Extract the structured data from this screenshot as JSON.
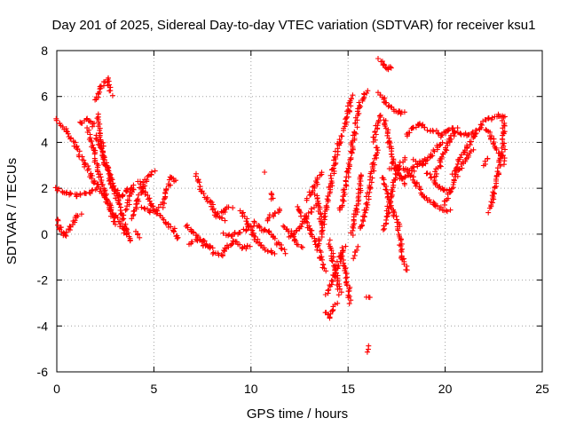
{
  "chart_data": {
    "type": "scatter",
    "title": "Day 201 of 2025, Sidereal Day-to-day VTEC variation (SDTVAR) for receiver ksu1",
    "xlabel": "GPS time / hours",
    "ylabel": "SDTVAR / TECUs",
    "xlim": [
      0,
      25
    ],
    "ylim": [
      -6,
      8
    ],
    "xticks": [
      0,
      5,
      10,
      15,
      20,
      25
    ],
    "yticks": [
      -6,
      -4,
      -2,
      0,
      2,
      4,
      6,
      8
    ],
    "grid": true,
    "marker": "+",
    "color": "#ff0000",
    "tracks": [
      [
        [
          0.0,
          5.0
        ],
        [
          0.5,
          4.5
        ],
        [
          1.0,
          3.8
        ],
        [
          1.5,
          3.0
        ],
        [
          2.0,
          2.2
        ],
        [
          2.5,
          1.6
        ],
        [
          3.0,
          0.8
        ],
        [
          3.5,
          0.1
        ],
        [
          3.8,
          -0.3
        ]
      ],
      [
        [
          0.0,
          2.0
        ],
        [
          0.5,
          1.8
        ],
        [
          1.0,
          1.7
        ],
        [
          1.5,
          1.8
        ],
        [
          2.0,
          1.9
        ]
      ],
      [
        [
          0.0,
          0.6
        ],
        [
          0.2,
          0.2
        ],
        [
          0.4,
          -0.1
        ],
        [
          0.7,
          0.3
        ],
        [
          1.0,
          0.7
        ],
        [
          1.2,
          0.9
        ]
      ],
      [
        [
          1.2,
          4.8
        ],
        [
          1.5,
          5.0
        ],
        [
          1.8,
          4.9
        ],
        [
          1.9,
          4.7
        ]
      ],
      [
        [
          2.0,
          5.8
        ],
        [
          2.3,
          6.4
        ],
        [
          2.6,
          6.8
        ],
        [
          2.8,
          6.1
        ]
      ],
      [
        [
          2.1,
          5.2
        ],
        [
          2.3,
          4.0
        ],
        [
          2.5,
          3.0
        ],
        [
          2.8,
          2.4
        ],
        [
          3.1,
          1.5
        ],
        [
          3.4,
          0.8
        ],
        [
          3.6,
          0.0
        ]
      ],
      [
        [
          1.6,
          4.6
        ],
        [
          1.9,
          3.6
        ],
        [
          2.2,
          2.6
        ],
        [
          2.5,
          1.7
        ],
        [
          2.8,
          1.0
        ],
        [
          3.0,
          0.4
        ]
      ],
      [
        [
          2.0,
          4.3
        ],
        [
          2.4,
          3.4
        ],
        [
          2.8,
          2.2
        ],
        [
          3.3,
          1.6
        ],
        [
          3.6,
          1.9
        ],
        [
          4.0,
          2.0
        ]
      ],
      [
        [
          3.6,
          1.0
        ],
        [
          3.8,
          1.7
        ],
        [
          3.9,
          2.1
        ]
      ],
      [
        [
          3.9,
          0.7
        ],
        [
          4.2,
          1.5
        ],
        [
          4.5,
          2.2
        ],
        [
          4.8,
          2.6
        ],
        [
          5.0,
          2.7
        ]
      ],
      [
        [
          4.2,
          2.3
        ],
        [
          4.5,
          1.8
        ],
        [
          4.9,
          1.3
        ],
        [
          5.2,
          0.9
        ],
        [
          5.6,
          0.5
        ],
        [
          6.0,
          0.2
        ],
        [
          6.3,
          -0.2
        ]
      ],
      [
        [
          4.4,
          1.2
        ],
        [
          4.8,
          1.0
        ],
        [
          5.2,
          1.1
        ]
      ],
      [
        [
          5.4,
          1.2
        ],
        [
          5.7,
          2.0
        ],
        [
          5.9,
          2.5
        ],
        [
          6.1,
          2.3
        ]
      ],
      [
        [
          4.1,
          0.1
        ],
        [
          4.3,
          -0.1
        ]
      ],
      [
        [
          6.6,
          0.4
        ],
        [
          6.9,
          0.2
        ],
        [
          7.2,
          -0.1
        ],
        [
          7.5,
          -0.3
        ],
        [
          7.9,
          -0.6
        ]
      ],
      [
        [
          7.2,
          2.6
        ],
        [
          7.5,
          1.8
        ],
        [
          7.9,
          1.4
        ],
        [
          8.2,
          0.9
        ],
        [
          8.6,
          0.6
        ]
      ],
      [
        [
          6.8,
          -0.4
        ],
        [
          7.2,
          -0.2
        ],
        [
          7.6,
          -0.5
        ],
        [
          8.0,
          -0.6
        ]
      ],
      [
        [
          8.2,
          0.8
        ],
        [
          8.6,
          1.0
        ],
        [
          9.0,
          1.2
        ]
      ],
      [
        [
          8.0,
          -0.8
        ],
        [
          8.5,
          -0.9
        ],
        [
          8.8,
          -0.5
        ],
        [
          9.2,
          -0.3
        ],
        [
          9.6,
          -0.6
        ],
        [
          10.0,
          -0.5
        ]
      ],
      [
        [
          8.6,
          0.0
        ],
        [
          9.0,
          -0.1
        ],
        [
          9.4,
          0.1
        ],
        [
          9.8,
          0.2
        ],
        [
          10.2,
          0.5
        ]
      ],
      [
        [
          9.5,
          1.0
        ],
        [
          9.8,
          0.5
        ],
        [
          10.1,
          0.0
        ],
        [
          10.4,
          -0.4
        ],
        [
          10.8,
          -0.7
        ],
        [
          11.2,
          -0.9
        ]
      ],
      [
        [
          10.2,
          0.4
        ],
        [
          10.6,
          0.2
        ],
        [
          11.0,
          0.1
        ],
        [
          11.4,
          -0.4
        ],
        [
          11.8,
          -0.8
        ]
      ],
      [
        [
          10.8,
          0.6
        ],
        [
          11.2,
          0.9
        ],
        [
          11.5,
          1.1
        ]
      ],
      [
        [
          10.7,
          2.7
        ]
      ],
      [
        [
          11.0,
          1.8
        ],
        [
          11.1,
          1.5
        ]
      ],
      [
        [
          11.6,
          0.3
        ],
        [
          12.0,
          0.1
        ],
        [
          12.3,
          -0.3
        ],
        [
          12.6,
          -0.6
        ]
      ],
      [
        [
          12.0,
          -0.1
        ],
        [
          12.5,
          0.3
        ],
        [
          12.9,
          0.8
        ],
        [
          13.3,
          1.2
        ]
      ],
      [
        [
          12.4,
          1.2
        ],
        [
          12.8,
          0.6
        ],
        [
          13.1,
          0.1
        ],
        [
          13.4,
          -0.5
        ],
        [
          13.6,
          -1.0
        ],
        [
          13.8,
          -1.6
        ]
      ],
      [
        [
          12.9,
          1.5
        ],
        [
          13.2,
          2.0
        ],
        [
          13.4,
          2.3
        ],
        [
          13.6,
          2.7
        ]
      ],
      [
        [
          13.3,
          1.8
        ],
        [
          13.5,
          1.2
        ],
        [
          13.6,
          0.5
        ]
      ],
      [
        [
          13.5,
          -0.4
        ],
        [
          13.7,
          0.4
        ],
        [
          13.9,
          1.2
        ],
        [
          14.1,
          2.1
        ],
        [
          14.3,
          3.1
        ],
        [
          14.5,
          3.9
        ],
        [
          14.7,
          4.3
        ]
      ],
      [
        [
          13.8,
          -3.4
        ],
        [
          14.0,
          -3.6
        ],
        [
          14.2,
          -3.3
        ],
        [
          14.4,
          -3.0
        ]
      ],
      [
        [
          13.9,
          -2.6
        ],
        [
          14.2,
          -2.0
        ],
        [
          14.4,
          -1.5
        ],
        [
          14.6,
          -1.0
        ],
        [
          14.8,
          -0.5
        ]
      ],
      [
        [
          14.0,
          -0.3
        ],
        [
          14.2,
          -1.0
        ],
        [
          14.4,
          -1.8
        ],
        [
          14.6,
          -2.6
        ]
      ],
      [
        [
          14.6,
          1.0
        ],
        [
          14.8,
          1.8
        ],
        [
          15.0,
          2.8
        ],
        [
          15.2,
          3.8
        ],
        [
          15.4,
          4.6
        ]
      ],
      [
        [
          14.6,
          -0.8
        ],
        [
          14.8,
          -1.5
        ],
        [
          15.0,
          -2.2
        ],
        [
          15.1,
          -3.0
        ]
      ],
      [
        [
          14.8,
          4.5
        ],
        [
          15.0,
          5.3
        ],
        [
          15.1,
          5.8
        ],
        [
          15.3,
          6.0
        ]
      ],
      [
        [
          15.2,
          0.0
        ],
        [
          15.4,
          1.0
        ],
        [
          15.6,
          2.0
        ],
        [
          15.7,
          2.6
        ]
      ],
      [
        [
          15.3,
          -1.0
        ],
        [
          15.5,
          -0.6
        ]
      ],
      [
        [
          15.4,
          4.8
        ],
        [
          15.6,
          5.6
        ],
        [
          15.8,
          6.1
        ],
        [
          16.0,
          6.2
        ]
      ],
      [
        [
          15.7,
          0.2
        ],
        [
          15.9,
          1.1
        ],
        [
          16.1,
          2.0
        ],
        [
          16.3,
          3.0
        ],
        [
          16.5,
          3.8
        ]
      ],
      [
        [
          16.0,
          -2.8
        ],
        [
          16.05,
          -2.7
        ]
      ],
      [
        [
          16.0,
          -4.9
        ],
        [
          16.05,
          -5.1
        ]
      ],
      [
        [
          16.3,
          4.0
        ],
        [
          16.5,
          4.8
        ],
        [
          16.7,
          5.2
        ]
      ],
      [
        [
          16.6,
          7.6
        ],
        [
          16.8,
          7.4
        ],
        [
          17.0,
          7.2
        ],
        [
          17.3,
          7.3
        ]
      ],
      [
        [
          16.6,
          6.2
        ],
        [
          16.9,
          5.8
        ],
        [
          17.2,
          5.5
        ],
        [
          17.6,
          5.3
        ],
        [
          17.9,
          5.3
        ]
      ],
      [
        [
          16.8,
          2.5
        ],
        [
          17.0,
          1.8
        ],
        [
          17.2,
          1.2
        ],
        [
          17.4,
          0.9
        ],
        [
          17.6,
          0.3
        ],
        [
          17.8,
          -1.0
        ],
        [
          18.0,
          -1.6
        ]
      ],
      [
        [
          16.9,
          5.0
        ],
        [
          17.1,
          4.0
        ],
        [
          17.3,
          3.2
        ],
        [
          17.6,
          2.6
        ],
        [
          17.9,
          2.2
        ]
      ],
      [
        [
          16.8,
          0.2
        ],
        [
          17.0,
          0.8
        ],
        [
          17.2,
          1.7
        ],
        [
          17.4,
          2.4
        ],
        [
          17.6,
          2.9
        ],
        [
          17.9,
          3.3
        ]
      ],
      [
        [
          17.2,
          2.8
        ],
        [
          17.6,
          2.9
        ],
        [
          18.0,
          2.8
        ],
        [
          18.4,
          2.7
        ]
      ],
      [
        [
          17.8,
          2.4
        ],
        [
          18.1,
          2.6
        ],
        [
          18.5,
          3.0
        ],
        [
          18.9,
          3.3
        ]
      ],
      [
        [
          18.0,
          4.3
        ],
        [
          18.3,
          4.6
        ],
        [
          18.7,
          4.8
        ],
        [
          19.0,
          4.7
        ]
      ],
      [
        [
          18.4,
          3.2
        ],
        [
          18.8,
          3.0
        ],
        [
          19.2,
          3.4
        ],
        [
          19.6,
          3.8
        ],
        [
          19.9,
          4.0
        ]
      ],
      [
        [
          18.2,
          2.6
        ],
        [
          18.5,
          2.2
        ],
        [
          18.9,
          1.7
        ],
        [
          19.4,
          1.3
        ],
        [
          19.9,
          1.1
        ],
        [
          20.2,
          1.0
        ]
      ],
      [
        [
          19.1,
          2.7
        ],
        [
          19.5,
          2.2
        ],
        [
          19.8,
          2.0
        ],
        [
          20.2,
          1.8
        ]
      ],
      [
        [
          19.0,
          4.6
        ],
        [
          19.4,
          4.5
        ],
        [
          19.8,
          4.3
        ],
        [
          20.1,
          4.5
        ]
      ],
      [
        [
          20.0,
          4.4
        ],
        [
          20.4,
          4.6
        ],
        [
          20.8,
          4.4
        ],
        [
          21.2,
          4.3
        ],
        [
          21.6,
          4.5
        ]
      ],
      [
        [
          19.4,
          2.5
        ],
        [
          19.7,
          3.0
        ],
        [
          20.0,
          3.7
        ],
        [
          20.3,
          4.2
        ],
        [
          20.6,
          4.6
        ]
      ],
      [
        [
          20.0,
          1.3
        ],
        [
          20.3,
          2.0
        ],
        [
          20.7,
          2.8
        ],
        [
          21.1,
          3.3
        ],
        [
          21.4,
          3.7
        ]
      ],
      [
        [
          20.4,
          2.6
        ],
        [
          20.7,
          3.2
        ],
        [
          21.1,
          3.8
        ],
        [
          21.5,
          4.3
        ],
        [
          21.9,
          4.7
        ]
      ],
      [
        [
          21.8,
          4.8
        ],
        [
          22.2,
          5.0
        ],
        [
          22.6,
          5.1
        ],
        [
          23.0,
          5.1
        ]
      ],
      [
        [
          22.0,
          3.0
        ],
        [
          22.2,
          3.3
        ]
      ],
      [
        [
          22.1,
          4.6
        ],
        [
          22.4,
          4.2
        ],
        [
          22.6,
          3.8
        ],
        [
          22.9,
          3.3
        ]
      ],
      [
        [
          22.3,
          1.0
        ],
        [
          22.5,
          1.8
        ],
        [
          22.7,
          2.6
        ],
        [
          22.9,
          3.5
        ]
      ],
      [
        [
          22.8,
          5.2
        ],
        [
          23.0,
          5.1
        ],
        [
          23.0,
          4.5
        ],
        [
          23.0,
          3.9
        ],
        [
          23.0,
          3.1
        ]
      ]
    ]
  }
}
